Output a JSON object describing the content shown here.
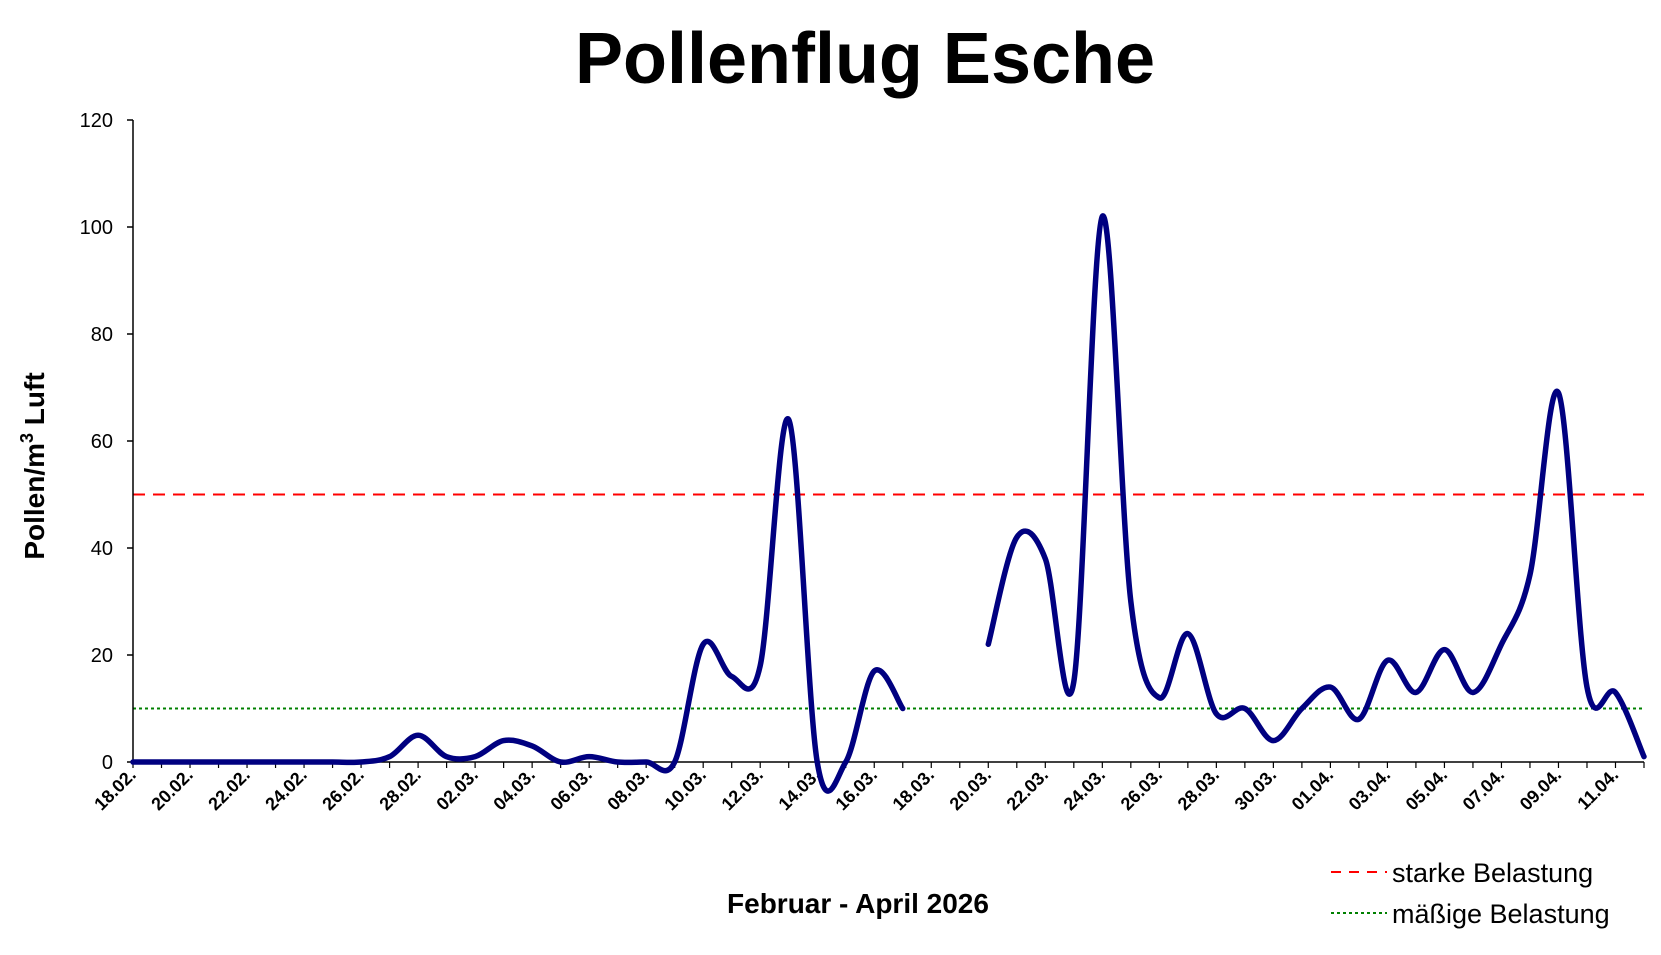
{
  "chart_data": {
    "type": "line",
    "title": "Pollenflug Esche",
    "xlabel": "Februar - April 2026",
    "ylabel_main": "Pollen/m",
    "ylabel_sup": "3",
    "ylabel_tail": " Luft",
    "ylim": [
      0,
      120
    ],
    "yticks": [
      0,
      20,
      40,
      60,
      80,
      100,
      120
    ],
    "grid": false,
    "legend_position": "bottom-right",
    "x": [
      "18.02.",
      "19.02.",
      "20.02.",
      "21.02.",
      "22.02.",
      "23.02.",
      "24.02.",
      "25.02.",
      "26.02.",
      "27.02.",
      "28.02.",
      "01.03.",
      "02.03.",
      "03.03.",
      "04.03.",
      "05.03.",
      "06.03.",
      "07.03.",
      "08.03.",
      "09.03.",
      "10.03.",
      "11.03.",
      "12.03.",
      "13.03.",
      "14.03.",
      "15.03.",
      "16.03.",
      "17.03.",
      "18.03.",
      "19.03.",
      "20.03.",
      "21.03.",
      "22.03.",
      "23.03.",
      "24.03.",
      "25.03.",
      "26.03.",
      "27.03.",
      "28.03.",
      "29.03.",
      "30.03.",
      "31.03.",
      "01.04.",
      "02.04.",
      "03.04.",
      "04.04.",
      "05.04.",
      "06.04.",
      "07.04.",
      "08.04.",
      "09.04.",
      "10.04.",
      "11.04.",
      "12.04."
    ],
    "x_tick_labels": [
      "18.02.",
      "20.02.",
      "22.02.",
      "24.02.",
      "26.02.",
      "28.02.",
      "02.03.",
      "04.03.",
      "06.03.",
      "08.03.",
      "10.03.",
      "12.03.",
      "14.03.",
      "16.03.",
      "18.03.",
      "20.03.",
      "22.03.",
      "24.03.",
      "26.03.",
      "28.03.",
      "30.03.",
      "01.04.",
      "03.04.",
      "05.04.",
      "07.04.",
      "09.04.",
      "11.04."
    ],
    "series": [
      {
        "values": [
          0,
          0,
          0,
          0,
          0,
          0,
          0,
          0,
          0,
          1,
          5,
          1,
          1,
          4,
          3,
          0,
          1,
          0,
          0,
          0,
          22,
          16,
          18,
          64,
          0,
          0,
          17,
          10,
          null,
          null,
          22,
          42,
          38,
          15,
          102,
          30,
          12,
          24,
          9,
          10,
          4,
          10,
          14,
          8,
          19,
          13,
          21,
          13,
          22,
          35,
          69,
          14,
          13,
          1
        ]
      }
    ],
    "reference_lines": [
      {
        "value": 50,
        "label": "starke Belastung",
        "color": "#ff0000",
        "style": "dashed"
      },
      {
        "value": 10,
        "label": "mäßige Belastung",
        "color": "#008000",
        "style": "dotted"
      }
    ],
    "series_color": "#000080"
  }
}
